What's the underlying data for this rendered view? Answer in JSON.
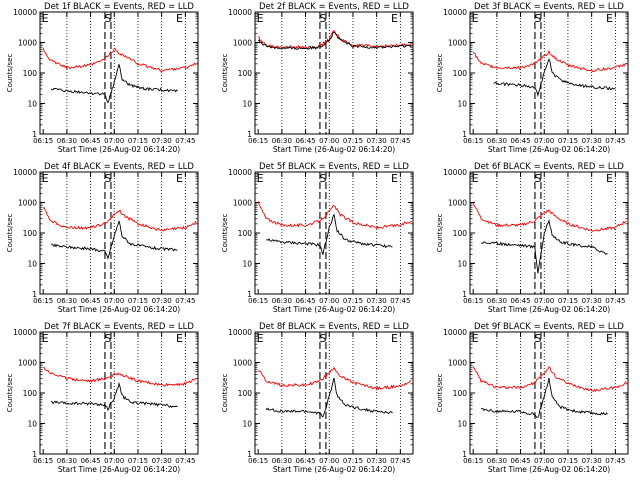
{
  "chart_data": [
    {
      "type": "line",
      "title": "Det 1f BLACK = Events, RED = LLD",
      "xlabel": "Start Time (26-Aug-02 06:14:20)",
      "ylabel": "Counts/sec",
      "xticks": [
        "06:15",
        "06:30",
        "06:45",
        "07:00",
        "07:15",
        "07:30",
        "07:45"
      ],
      "yticks": [
        "1",
        "10",
        "100",
        "1000",
        "10000"
      ],
      "ylim": [
        1,
        10000
      ],
      "log_y": true,
      "markers": [
        {
          "label": "E",
          "x": "06:15"
        },
        {
          "label": "S",
          "x": "06:56"
        },
        {
          "label": "E",
          "x": "07:40"
        }
      ],
      "series": [
        {
          "color": "#ff0000",
          "x": [
            "06:15",
            "06:20",
            "06:30",
            "06:45",
            "06:54",
            "07:00",
            "07:03",
            "07:07",
            "07:15",
            "07:30",
            "07:45",
            "07:52"
          ],
          "values": [
            600,
            250,
            150,
            180,
            280,
            600,
            450,
            350,
            200,
            120,
            150,
            200
          ]
        },
        {
          "color": "#000000",
          "x": [
            "06:20",
            "06:30",
            "06:45",
            "06:54",
            "06:56",
            "07:00",
            "07:03",
            "07:05",
            "07:10",
            "07:20",
            "07:30",
            "07:40"
          ],
          "values": [
            30,
            25,
            22,
            20,
            10,
            50,
            200,
            60,
            40,
            30,
            28,
            25
          ]
        }
      ]
    },
    {
      "type": "line",
      "title": "Det 2f BLACK = Events, RED = LLD",
      "xlabel": "Start Time (26-Aug-02 06:14:20)",
      "ylabel": "Counts/sec",
      "xticks": [
        "06:15",
        "06:30",
        "06:45",
        "07:00",
        "07:15",
        "07:30",
        "07:45"
      ],
      "yticks": [
        "1",
        "10",
        "100",
        "1000",
        "10000"
      ],
      "ylim": [
        1,
        10000
      ],
      "log_y": true,
      "markers": [
        {
          "label": "E",
          "x": "06:15"
        },
        {
          "label": "S",
          "x": "06:56"
        },
        {
          "label": "E",
          "x": "07:40"
        }
      ],
      "series": [
        {
          "color": "#ff0000",
          "x": [
            "06:15",
            "06:20",
            "06:30",
            "06:45",
            "06:54",
            "07:00",
            "07:03",
            "07:07",
            "07:15",
            "07:30",
            "07:45",
            "07:52"
          ],
          "values": [
            1500,
            800,
            700,
            700,
            750,
            1300,
            2500,
            1300,
            800,
            750,
            800,
            900
          ]
        },
        {
          "color": "#000000",
          "x": [
            "06:15",
            "06:20",
            "06:30",
            "06:45",
            "06:54",
            "07:00",
            "07:03",
            "07:07",
            "07:15",
            "07:30",
            "07:45",
            "07:52"
          ],
          "values": [
            1200,
            750,
            650,
            650,
            700,
            1200,
            2200,
            1200,
            750,
            700,
            750,
            800
          ]
        }
      ]
    },
    {
      "type": "line",
      "title": "Det 3f BLACK = Events, RED = LLD",
      "xlabel": "Start Time (26-Aug-02 06:14:20)",
      "ylabel": "Counts/sec",
      "xticks": [
        "06:15",
        "06:30",
        "06:45",
        "07:00",
        "07:15",
        "07:30",
        "07:45"
      ],
      "yticks": [
        "1",
        "10",
        "100",
        "1000",
        "10000"
      ],
      "ylim": [
        1,
        10000
      ],
      "log_y": true,
      "markers": [
        {
          "label": "E",
          "x": "06:15"
        },
        {
          "label": "S",
          "x": "06:56"
        },
        {
          "label": "E",
          "x": "07:40"
        }
      ],
      "series": [
        {
          "color": "#ff0000",
          "x": [
            "06:15",
            "06:20",
            "06:30",
            "06:45",
            "06:54",
            "07:00",
            "07:03",
            "07:07",
            "07:15",
            "07:30",
            "07:45",
            "07:52"
          ],
          "values": [
            500,
            200,
            150,
            150,
            200,
            350,
            500,
            300,
            180,
            120,
            150,
            200
          ]
        },
        {
          "color": "#000000",
          "x": [
            "06:28",
            "06:30",
            "06:45",
            "06:54",
            "06:56",
            "07:00",
            "07:03",
            "07:05",
            "07:10",
            "07:20",
            "07:30",
            "07:45"
          ],
          "values": [
            50,
            45,
            40,
            35,
            20,
            100,
            300,
            100,
            60,
            40,
            35,
            30
          ]
        }
      ]
    },
    {
      "type": "line",
      "title": "Det 4f BLACK = Events, RED = LLD",
      "xlabel": "Start Time (26-Aug-02 06:14:20)",
      "ylabel": "Counts/sec",
      "xticks": [
        "06:15",
        "06:30",
        "06:45",
        "07:00",
        "07:15",
        "07:30",
        "07:45"
      ],
      "yticks": [
        "1",
        "10",
        "100",
        "1000",
        "10000"
      ],
      "ylim": [
        1,
        10000
      ],
      "log_y": true,
      "markers": [
        {
          "label": "E",
          "x": "06:15"
        },
        {
          "label": "S",
          "x": "06:56"
        },
        {
          "label": "E",
          "x": "07:40"
        }
      ],
      "series": [
        {
          "color": "#ff0000",
          "x": [
            "06:15",
            "06:20",
            "06:30",
            "06:45",
            "06:54",
            "07:00",
            "07:03",
            "07:07",
            "07:15",
            "07:30",
            "07:45",
            "07:52"
          ],
          "values": [
            700,
            250,
            150,
            150,
            200,
            400,
            550,
            350,
            200,
            120,
            150,
            220
          ]
        },
        {
          "color": "#000000",
          "x": [
            "06:20",
            "06:30",
            "06:45",
            "06:54",
            "06:56",
            "07:00",
            "07:03",
            "07:05",
            "07:10",
            "07:20",
            "07:30",
            "07:40"
          ],
          "values": [
            40,
            35,
            30,
            25,
            15,
            80,
            250,
            80,
            45,
            35,
            30,
            28
          ]
        }
      ]
    },
    {
      "type": "line",
      "title": "Det 5f BLACK = Events, RED = LLD",
      "xlabel": "Start Time (26-Aug-02 06:14:20)",
      "ylabel": "Counts/sec",
      "xticks": [
        "06:15",
        "06:30",
        "06:45",
        "07:00",
        "07:15",
        "07:30",
        "07:45"
      ],
      "yticks": [
        "1",
        "10",
        "100",
        "1000",
        "10000"
      ],
      "ylim": [
        1,
        10000
      ],
      "log_y": true,
      "markers": [
        {
          "label": "E",
          "x": "06:15"
        },
        {
          "label": "S",
          "x": "06:56"
        },
        {
          "label": "E",
          "x": "07:40"
        }
      ],
      "series": [
        {
          "color": "#ff0000",
          "x": [
            "06:15",
            "06:20",
            "06:30",
            "06:45",
            "06:54",
            "07:00",
            "07:03",
            "07:07",
            "07:15",
            "07:30",
            "07:45",
            "07:52"
          ],
          "values": [
            1000,
            300,
            180,
            180,
            250,
            500,
            800,
            400,
            220,
            150,
            180,
            250
          ]
        },
        {
          "color": "#000000",
          "x": [
            "06:20",
            "06:30",
            "06:45",
            "06:54",
            "06:56",
            "07:00",
            "07:03",
            "07:05",
            "07:10",
            "07:20",
            "07:30",
            "07:40"
          ],
          "values": [
            60,
            50,
            45,
            40,
            20,
            150,
            400,
            120,
            60,
            45,
            40,
            35
          ]
        }
      ]
    },
    {
      "type": "line",
      "title": "Det 6f BLACK = Events, RED = LLD",
      "xlabel": "Start Time (26-Aug-02 06:14:20)",
      "ylabel": "Counts/sec",
      "xticks": [
        "06:15",
        "06:30",
        "06:45",
        "07:00",
        "07:15",
        "07:30",
        "07:45"
      ],
      "yticks": [
        "1",
        "10",
        "100",
        "1000",
        "10000"
      ],
      "ylim": [
        1,
        10000
      ],
      "log_y": true,
      "markers": [
        {
          "label": "E",
          "x": "06:15"
        },
        {
          "label": "S",
          "x": "06:56"
        },
        {
          "label": "E",
          "x": "07:40"
        }
      ],
      "series": [
        {
          "color": "#ff0000",
          "x": [
            "06:15",
            "06:20",
            "06:30",
            "06:45",
            "06:54",
            "07:00",
            "07:03",
            "07:07",
            "07:15",
            "07:30",
            "07:45",
            "07:52"
          ],
          "values": [
            1000,
            300,
            180,
            180,
            250,
            450,
            550,
            350,
            200,
            120,
            150,
            250
          ]
        },
        {
          "color": "#000000",
          "x": [
            "06:20",
            "06:30",
            "06:45",
            "06:54",
            "06:56",
            "07:00",
            "07:03",
            "07:05",
            "07:10",
            "07:20",
            "07:30",
            "07:40"
          ],
          "values": [
            50,
            45,
            40,
            35,
            5,
            100,
            250,
            90,
            50,
            40,
            35,
            20
          ]
        }
      ]
    },
    {
      "type": "line",
      "title": "Det 7f BLACK = Events, RED = LLD",
      "xlabel": "Start Time (26-Aug-02 06:14:20)",
      "ylabel": "Counts/sec",
      "xticks": [
        "06:15",
        "06:30",
        "06:45",
        "07:00",
        "07:15",
        "07:30",
        "07:45"
      ],
      "yticks": [
        "1",
        "10",
        "100",
        "1000",
        "10000"
      ],
      "ylim": [
        1,
        10000
      ],
      "log_y": true,
      "markers": [
        {
          "label": "E",
          "x": "06:15"
        },
        {
          "label": "S",
          "x": "06:56"
        },
        {
          "label": "E",
          "x": "07:40"
        }
      ],
      "series": [
        {
          "color": "#ff0000",
          "x": [
            "06:15",
            "06:20",
            "06:30",
            "06:45",
            "06:54",
            "07:00",
            "07:03",
            "07:07",
            "07:15",
            "07:30",
            "07:45",
            "07:52"
          ],
          "values": [
            700,
            450,
            300,
            250,
            300,
            400,
            450,
            350,
            250,
            180,
            200,
            300
          ]
        },
        {
          "color": "#000000",
          "x": [
            "06:20",
            "06:30",
            "06:45",
            "06:54",
            "06:56",
            "07:00",
            "07:03",
            "07:05",
            "07:10",
            "07:20",
            "07:30",
            "07:40"
          ],
          "values": [
            50,
            45,
            45,
            40,
            30,
            70,
            200,
            80,
            50,
            45,
            40,
            35
          ]
        }
      ]
    },
    {
      "type": "line",
      "title": "Det 8f BLACK = Events, RED = LLD",
      "xlabel": "Start Time (26-Aug-02 06:14:20)",
      "ylabel": "Counts/sec",
      "xticks": [
        "06:15",
        "06:30",
        "06:45",
        "07:00",
        "07:15",
        "07:30",
        "07:45"
      ],
      "yticks": [
        "1",
        "10",
        "100",
        "1000",
        "10000"
      ],
      "ylim": [
        1,
        10000
      ],
      "log_y": true,
      "markers": [
        {
          "label": "E",
          "x": "06:15"
        },
        {
          "label": "S",
          "x": "06:56"
        },
        {
          "label": "E",
          "x": "07:40"
        }
      ],
      "series": [
        {
          "color": "#ff0000",
          "x": [
            "06:15",
            "06:20",
            "06:30",
            "06:45",
            "06:54",
            "07:00",
            "07:03",
            "07:07",
            "07:15",
            "07:30",
            "07:45",
            "07:52"
          ],
          "values": [
            600,
            250,
            180,
            180,
            250,
            450,
            700,
            350,
            220,
            140,
            170,
            250
          ]
        },
        {
          "color": "#000000",
          "x": [
            "06:20",
            "06:30",
            "06:45",
            "06:54",
            "06:56",
            "07:00",
            "07:03",
            "07:05",
            "07:10",
            "07:20",
            "07:30",
            "07:40"
          ],
          "values": [
            30,
            25,
            25,
            22,
            15,
            80,
            300,
            80,
            40,
            30,
            25,
            22
          ]
        }
      ]
    },
    {
      "type": "line",
      "title": "Det 9f BLACK = Events, RED = LLD",
      "xlabel": "Start Time (26-Aug-02 06:14:20)",
      "ylabel": "Counts/sec",
      "xticks": [
        "06:15",
        "06:30",
        "06:45",
        "07:00",
        "07:15",
        "07:30",
        "07:45"
      ],
      "yticks": [
        "1",
        "10",
        "100",
        "1000",
        "10000"
      ],
      "ylim": [
        1,
        10000
      ],
      "log_y": true,
      "markers": [
        {
          "label": "E",
          "x": "06:15"
        },
        {
          "label": "S",
          "x": "06:56"
        },
        {
          "label": "E",
          "x": "07:40"
        }
      ],
      "series": [
        {
          "color": "#ff0000",
          "x": [
            "06:15",
            "06:20",
            "06:30",
            "06:45",
            "06:54",
            "07:00",
            "07:03",
            "07:07",
            "07:15",
            "07:30",
            "07:45",
            "07:52"
          ],
          "values": [
            700,
            250,
            150,
            150,
            220,
            450,
            700,
            350,
            200,
            120,
            150,
            220
          ]
        },
        {
          "color": "#000000",
          "x": [
            "06:20",
            "06:30",
            "06:45",
            "06:54",
            "06:56",
            "07:00",
            "07:03",
            "07:05",
            "07:10",
            "07:20",
            "07:30",
            "07:40"
          ],
          "values": [
            30,
            25,
            25,
            20,
            15,
            80,
            300,
            70,
            35,
            25,
            22,
            20
          ]
        }
      ]
    }
  ]
}
